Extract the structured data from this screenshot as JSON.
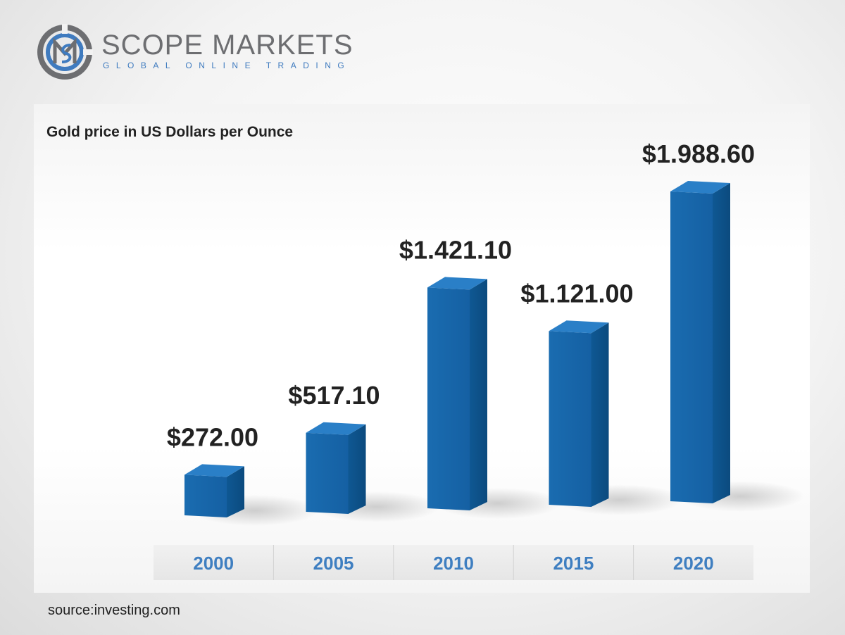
{
  "logo": {
    "name": "SCOPE MARKETS",
    "tagline": "GLOBAL ONLINE TRADING"
  },
  "colors": {
    "bar_front": "#1565a8",
    "bar_side": "#0d4f86",
    "bar_top": "#2a7fc7",
    "year_text": "#3f7fc1",
    "logo_blue": "#3f7bbf",
    "logo_gray": "#6d6e71"
  },
  "chart_data": {
    "type": "bar",
    "title": "Gold price in US Dollars per Ounce",
    "categories": [
      "2000",
      "2005",
      "2010",
      "2015",
      "2020"
    ],
    "values": [
      272.0,
      517.1,
      1421.1,
      1121.0,
      1988.6
    ],
    "value_labels": [
      "$272.00",
      "$517.10",
      "$1.421.10",
      "$1.121.00",
      "$1.988.60"
    ],
    "xlabel": "",
    "ylabel": "",
    "grid": false,
    "legend": "none"
  },
  "source": "source:investing.com"
}
